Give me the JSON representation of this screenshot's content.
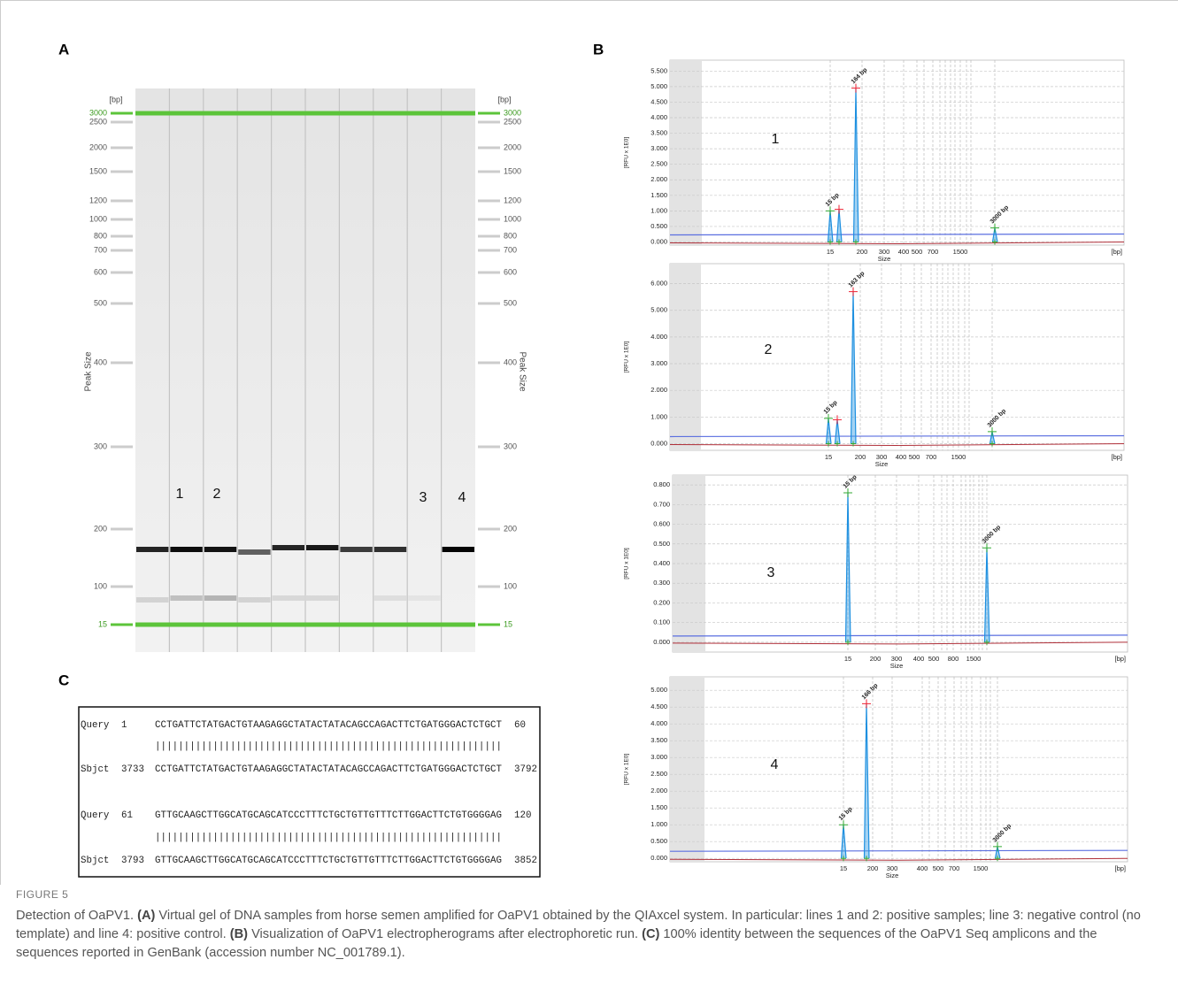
{
  "panel_labels": [
    "A",
    "B",
    "C"
  ],
  "gel": {
    "unit_label": "[bp]",
    "axis_label": "Peak Size",
    "ladder": [
      3000,
      2500,
      2000,
      1500,
      1200,
      1000,
      800,
      700,
      600,
      500,
      400,
      300,
      200,
      100,
      15
    ],
    "lane_labels": [
      "1",
      "2",
      "3",
      "4"
    ]
  },
  "electropherograms": [
    {
      "number": "1",
      "y_label": "[RFU x 1E0]",
      "x_label": "Size",
      "x_unit": "[bp]",
      "ylim": [
        -0.1,
        5.85
      ],
      "yticks": [
        {
          "value": 0,
          "label": "0.000"
        },
        {
          "value": 0.5,
          "label": "0.500"
        },
        {
          "value": 1,
          "label": "1.000"
        },
        {
          "value": 1.5,
          "label": "1.500"
        },
        {
          "value": 2,
          "label": "2.000"
        },
        {
          "value": 2.5,
          "label": "2.500"
        },
        {
          "value": 3,
          "label": "3.000"
        },
        {
          "value": 3.5,
          "label": "3.500"
        },
        {
          "value": 4,
          "label": "4.000"
        },
        {
          "value": 4.5,
          "label": "4.500"
        },
        {
          "value": 5,
          "label": "5.000"
        },
        {
          "value": 5.5,
          "label": "5.500"
        }
      ],
      "xticks": [
        "15",
        "200",
        "300",
        "400",
        "500",
        "700",
        "1500"
      ],
      "peaks": [
        {
          "label": "15 bp",
          "value": 1.0
        },
        {
          "label": null,
          "value": 1.05
        },
        {
          "label": "164 bp",
          "value": 4.95
        },
        {
          "label": "3000 bp",
          "value": 0.45
        }
      ]
    },
    {
      "number": "2",
      "y_label": "[RFU x 1E0]",
      "x_label": "Size",
      "x_unit": "[bp]",
      "ylim": [
        -0.25,
        6.75
      ],
      "yticks": [
        {
          "value": 0,
          "label": "0.000"
        },
        {
          "value": 1,
          "label": "1.000"
        },
        {
          "value": 2,
          "label": "2.000"
        },
        {
          "value": 3,
          "label": "3.000"
        },
        {
          "value": 4,
          "label": "4.000"
        },
        {
          "value": 5,
          "label": "5.000"
        },
        {
          "value": 6,
          "label": "6.000"
        }
      ],
      "xticks": [
        "15",
        "200",
        "300",
        "400",
        "500",
        "700",
        "1500"
      ],
      "peaks": [
        {
          "label": "15 bp",
          "value": 0.95
        },
        {
          "label": null,
          "value": 0.9
        },
        {
          "label": "163 bp",
          "value": 5.7
        },
        {
          "label": "3000 bp",
          "value": 0.45
        }
      ]
    },
    {
      "number": "3",
      "y_label": "[RFU x 1E0]",
      "x_label": "Size",
      "x_unit": "[bp]",
      "ylim": [
        -0.05,
        0.85
      ],
      "yticks": [
        {
          "value": 0,
          "label": "0.000"
        },
        {
          "value": 0.1,
          "label": "0.100"
        },
        {
          "value": 0.2,
          "label": "0.200"
        },
        {
          "value": 0.3,
          "label": "0.300"
        },
        {
          "value": 0.4,
          "label": "0.400"
        },
        {
          "value": 0.5,
          "label": "0.500"
        },
        {
          "value": 0.6,
          "label": "0.600"
        },
        {
          "value": 0.7,
          "label": "0.700"
        },
        {
          "value": 0.8,
          "label": "0.800"
        }
      ],
      "xticks": [
        "15",
        "200",
        "300",
        "400",
        "500",
        "800",
        "1500"
      ],
      "peaks": [
        {
          "label": "15 bp",
          "value": 0.76
        },
        {
          "label": "3000 bp",
          "value": 0.48
        }
      ]
    },
    {
      "number": "4",
      "y_label": "[RFU x 1E0]",
      "x_label": "Size",
      "x_unit": "[bp]",
      "ylim": [
        -0.1,
        5.4
      ],
      "yticks": [
        {
          "value": 0,
          "label": "0.000"
        },
        {
          "value": 0.5,
          "label": "0.500"
        },
        {
          "value": 1,
          "label": "1.000"
        },
        {
          "value": 1.5,
          "label": "1.500"
        },
        {
          "value": 2,
          "label": "2.000"
        },
        {
          "value": 2.5,
          "label": "2.500"
        },
        {
          "value": 3,
          "label": "3.000"
        },
        {
          "value": 3.5,
          "label": "3.500"
        },
        {
          "value": 4,
          "label": "4.000"
        },
        {
          "value": 4.5,
          "label": "4.500"
        },
        {
          "value": 5,
          "label": "5.000"
        }
      ],
      "xticks": [
        "15",
        "200",
        "300",
        "400",
        "500",
        "700",
        "1500"
      ],
      "peaks": [
        {
          "label": "15 bp",
          "value": 1.0
        },
        {
          "label": "166 bp",
          "value": 4.6
        },
        {
          "label": "3000 bp",
          "value": 0.35
        }
      ]
    }
  ],
  "alignment": {
    "blocks": [
      {
        "query": {
          "name": "Query",
          "start": 1,
          "sequence": "CCTGATTCTATGACTGTAAGAGGCTATACTATACAGCCAGACTTCTGATGGGACTCTGCT",
          "end": 60
        },
        "match": "||||||||||||||||||||||||||||||||||||||||||||||||||||||||||||",
        "subject": {
          "name": "Sbjct",
          "start": 3733,
          "sequence": "CCTGATTCTATGACTGTAAGAGGCTATACTATACAGCCAGACTTCTGATGGGACTCTGCT",
          "end": 3792
        }
      },
      {
        "query": {
          "name": "Query",
          "start": 61,
          "sequence": "GTTGCAAGCTTGGCATGCAGCATCCCTTTCTGCTGTTGTTTCTTGGACTTCTGTGGGGAG",
          "end": 120
        },
        "match": "||||||||||||||||||||||||||||||||||||||||||||||||||||||||||||",
        "subject": {
          "name": "Sbjct",
          "start": 3793,
          "sequence": "GTTGCAAGCTTGGCATGCAGCATCCCTTTCTGCTGTTGTTTCTTGGACTTCTGTGGGGAG",
          "end": 3852
        }
      }
    ]
  },
  "caption": {
    "label": "FIGURE 5",
    "parts": [
      "Detection of OaPV1. ",
      "(A)",
      " Virtual gel of DNA samples from horse semen amplified for OaPV1 obtained by the QIAxcel system. In particular: lines 1 and 2: positive samples; line 3: negative control (no template) and line 4: positive control. ",
      "(B)",
      " Visualization of OaPV1 electropherograms after electrophoretic run. ",
      "(C)",
      " 100% identity between the sequences of the OaPV1 Seq amplicons and the sequences reported in GenBank (accession number NC_001789.1)."
    ]
  }
}
